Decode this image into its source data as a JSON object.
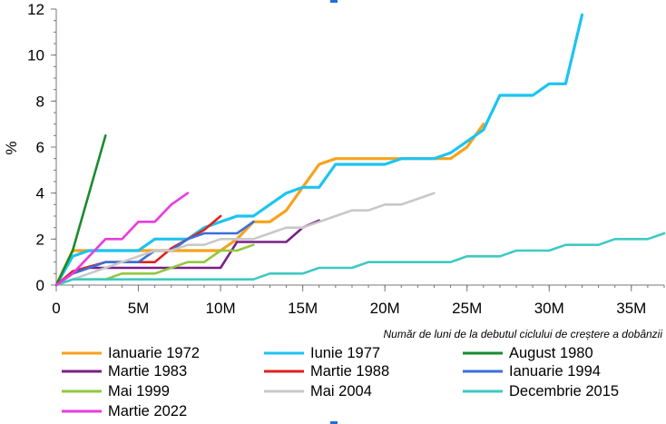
{
  "chart_data": {
    "type": "line",
    "title": "",
    "xlabel": "Număr de luni de la debutul ciclului de creștere a dobânzii",
    "ylabel": "%",
    "xlim": [
      0,
      37
    ],
    "ylim": [
      0,
      12
    ],
    "xticks": [
      0,
      5,
      10,
      15,
      20,
      25,
      30,
      35
    ],
    "xtick_labels": [
      "0",
      "5M",
      "10M",
      "15M",
      "20M",
      "25M",
      "30M",
      "35M"
    ],
    "yticks": [
      0,
      2,
      4,
      6,
      8,
      10,
      12
    ],
    "ytick_labels": [
      "0",
      "2",
      "4",
      "6",
      "8",
      "10",
      "12"
    ],
    "grid": false,
    "legend_position": "bottom",
    "series": [
      {
        "name": "Ianuarie 1972",
        "color": "#f7a21b",
        "x": [
          0,
          1,
          2,
          3,
          4,
          5,
          6,
          7,
          8,
          9,
          10,
          11,
          12,
          13,
          14,
          15,
          16,
          17,
          18,
          19,
          20,
          21,
          22,
          23,
          24,
          25,
          26
        ],
        "y": [
          0,
          1.5,
          1.5,
          1.5,
          1.5,
          1.5,
          1.5,
          1.5,
          1.5,
          1.5,
          1.5,
          2.0,
          2.75,
          2.75,
          3.25,
          4.25,
          5.25,
          5.5,
          5.5,
          5.5,
          5.5,
          5.5,
          5.5,
          5.5,
          5.5,
          6.0,
          7.0
        ]
      },
      {
        "name": "Iunie 1977",
        "color": "#1cc4f0",
        "x": [
          0,
          1,
          2,
          3,
          4,
          5,
          6,
          7,
          8,
          9,
          10,
          11,
          12,
          13,
          14,
          15,
          16,
          17,
          18,
          19,
          20,
          21,
          22,
          23,
          24,
          25,
          26,
          27,
          28,
          29,
          30,
          31,
          32
        ],
        "y": [
          0,
          1.25,
          1.5,
          1.5,
          1.5,
          1.5,
          2.0,
          2.0,
          2.0,
          2.5,
          2.75,
          3.0,
          3.0,
          3.5,
          4.0,
          4.25,
          4.25,
          5.25,
          5.25,
          5.25,
          5.25,
          5.5,
          5.5,
          5.5,
          5.75,
          6.25,
          6.75,
          8.25,
          8.25,
          8.25,
          8.75,
          8.75,
          11.75
        ]
      },
      {
        "name": "August 1980",
        "color": "#1a8a2e",
        "x": [
          0,
          1,
          2,
          3
        ],
        "y": [
          0,
          1.5,
          4.0,
          6.5
        ]
      },
      {
        "name": "Martie 1983",
        "color": "#7a1f87",
        "x": [
          0,
          1,
          2,
          3,
          4,
          5,
          6,
          7,
          8,
          9,
          10,
          11,
          12,
          13,
          14,
          15,
          16
        ],
        "y": [
          0,
          0.5,
          0.75,
          0.75,
          0.75,
          0.75,
          0.75,
          0.75,
          0.75,
          0.75,
          0.75,
          1.875,
          1.875,
          1.875,
          1.875,
          2.5,
          2.8125
        ]
      },
      {
        "name": "Martie 1988",
        "color": "#e02020",
        "x": [
          0,
          1,
          2,
          3,
          4,
          5,
          6,
          7,
          8,
          9,
          10
        ],
        "y": [
          0,
          0.6,
          0.8,
          1.0,
          1.0,
          1.0,
          1.0,
          1.6,
          2.0,
          2.4,
          3.0
        ]
      },
      {
        "name": "Ianuarie 1994",
        "color": "#3a6fd8",
        "x": [
          0,
          1,
          2,
          3,
          4,
          5,
          6,
          7,
          8,
          9,
          10,
          11,
          12
        ],
        "y": [
          0,
          0.5,
          0.75,
          1.0,
          1.0,
          1.0,
          1.5,
          1.5,
          2.0,
          2.25,
          2.25,
          2.25,
          2.75
        ]
      },
      {
        "name": "Mai 1999",
        "color": "#92c83e",
        "x": [
          0,
          1,
          2,
          3,
          4,
          5,
          6,
          7,
          8,
          9,
          10,
          11,
          12
        ],
        "y": [
          0,
          0.25,
          0.25,
          0.25,
          0.5,
          0.5,
          0.5,
          0.75,
          1.0,
          1.0,
          1.5,
          1.5,
          1.75
        ]
      },
      {
        "name": "Mai 2004",
        "color": "#c8c8c8",
        "x": [
          0,
          1,
          2,
          3,
          4,
          5,
          6,
          7,
          8,
          9,
          10,
          11,
          12,
          13,
          14,
          15,
          16,
          17,
          18,
          19,
          20,
          21,
          22,
          23
        ],
        "y": [
          0,
          0.25,
          0.5,
          0.75,
          1.0,
          1.25,
          1.5,
          1.5,
          1.75,
          1.75,
          2.0,
          2.0,
          2.0,
          2.25,
          2.5,
          2.5,
          2.75,
          3.0,
          3.25,
          3.25,
          3.5,
          3.5,
          3.75,
          4.0
        ]
      },
      {
        "name": "Decembrie 2015",
        "color": "#3ec9c3",
        "x": [
          0,
          1,
          2,
          3,
          4,
          5,
          6,
          7,
          8,
          9,
          10,
          11,
          12,
          13,
          14,
          15,
          16,
          17,
          18,
          19,
          20,
          21,
          22,
          23,
          24,
          25,
          26,
          27,
          28,
          29,
          30,
          31,
          32,
          33,
          34,
          35,
          36,
          37
        ],
        "y": [
          0,
          0.25,
          0.25,
          0.25,
          0.25,
          0.25,
          0.25,
          0.25,
          0.25,
          0.25,
          0.25,
          0.25,
          0.25,
          0.5,
          0.5,
          0.5,
          0.75,
          0.75,
          0.75,
          1.0,
          1.0,
          1.0,
          1.0,
          1.0,
          1.0,
          1.25,
          1.25,
          1.25,
          1.5,
          1.5,
          1.5,
          1.75,
          1.75,
          1.75,
          2.0,
          2.0,
          2.0,
          2.25
        ]
      },
      {
        "name": "Martie 2022",
        "color": "#e83ce0",
        "x": [
          0,
          1,
          2,
          3,
          4,
          5,
          6,
          7,
          8
        ],
        "y": [
          0,
          0.5,
          1.25,
          2.0,
          2.0,
          2.75,
          2.75,
          3.5,
          4.0
        ]
      }
    ]
  }
}
